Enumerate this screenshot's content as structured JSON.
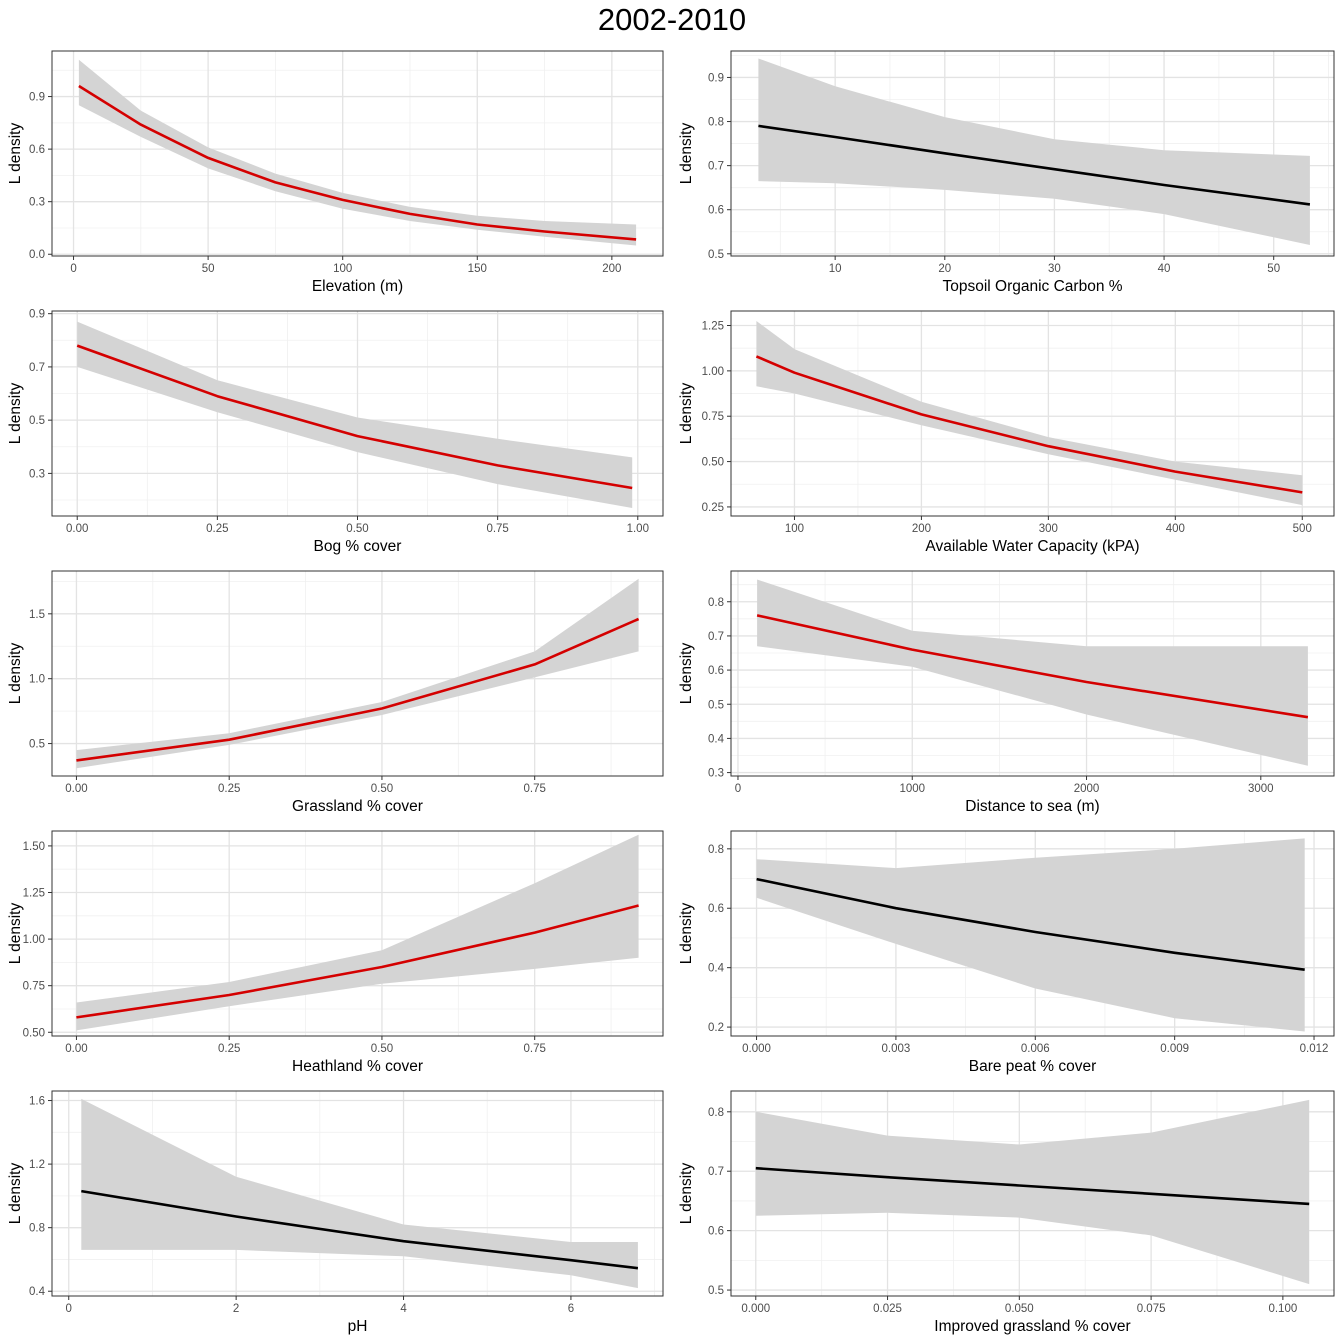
{
  "title": "2002-2010",
  "colors": {
    "significant": "#d40000",
    "nonsignificant": "#000000",
    "ribbon": "#d4d4d4"
  },
  "chart_data": [
    {
      "type": "line",
      "xlabel": "Elevation (m)",
      "ylabel": "L density",
      "color": "red",
      "xlim": [
        -8,
        219
      ],
      "ylim": [
        -0.01,
        1.16
      ],
      "xticks": [
        0,
        50,
        100,
        150,
        200
      ],
      "xtick_labels": [
        "0",
        "50",
        "100",
        "150",
        "200"
      ],
      "yticks": [
        0,
        0.3,
        0.6,
        0.9
      ],
      "ytick_labels": [
        "0.0",
        "0.3",
        "0.6",
        "0.9"
      ],
      "x": [
        2,
        25,
        50,
        75,
        100,
        125,
        150,
        175,
        209
      ],
      "y": [
        0.96,
        0.74,
        0.55,
        0.41,
        0.31,
        0.23,
        0.17,
        0.13,
        0.085
      ],
      "lower": [
        0.85,
        0.67,
        0.49,
        0.36,
        0.26,
        0.19,
        0.14,
        0.1,
        0.05
      ],
      "upper": [
        1.11,
        0.82,
        0.61,
        0.46,
        0.35,
        0.27,
        0.22,
        0.19,
        0.17
      ]
    },
    {
      "type": "line",
      "xlabel": "Topsoil Organic Carbon %",
      "ylabel": "L density",
      "color": "black",
      "xlim": [
        0.5,
        55.5
      ],
      "ylim": [
        0.495,
        0.96
      ],
      "xticks": [
        10,
        20,
        30,
        40,
        50
      ],
      "xtick_labels": [
        "10",
        "20",
        "30",
        "40",
        "50"
      ],
      "yticks": [
        0.5,
        0.6,
        0.7,
        0.8,
        0.9
      ],
      "ytick_labels": [
        "0.5",
        "0.6",
        "0.7",
        "0.8",
        "0.9"
      ],
      "x": [
        3,
        10,
        20,
        30,
        40,
        53.3
      ],
      "y": [
        0.79,
        0.765,
        0.728,
        0.692,
        0.656,
        0.612
      ],
      "lower": [
        0.665,
        0.66,
        0.645,
        0.625,
        0.59,
        0.52
      ],
      "upper": [
        0.943,
        0.88,
        0.81,
        0.76,
        0.735,
        0.722
      ]
    },
    {
      "type": "line",
      "xlabel": "Bog % cover",
      "ylabel": "L density",
      "color": "red",
      "xlim": [
        -0.045,
        1.045
      ],
      "ylim": [
        0.14,
        0.91
      ],
      "xticks": [
        0,
        0.25,
        0.5,
        0.75,
        1.0
      ],
      "xtick_labels": [
        "0.00",
        "0.25",
        "0.50",
        "0.75",
        "1.00"
      ],
      "yticks": [
        0.3,
        0.5,
        0.7,
        0.9
      ],
      "ytick_labels": [
        "0.3",
        "0.5",
        "0.7",
        "0.9"
      ],
      "x": [
        0,
        0.25,
        0.5,
        0.75,
        0.99
      ],
      "y": [
        0.78,
        0.59,
        0.44,
        0.33,
        0.245
      ],
      "lower": [
        0.7,
        0.53,
        0.38,
        0.26,
        0.17
      ],
      "upper": [
        0.87,
        0.65,
        0.51,
        0.43,
        0.36
      ]
    },
    {
      "type": "line",
      "xlabel": "Available Water Capacity (kPA)",
      "ylabel": "L density",
      "color": "red",
      "xlim": [
        50,
        525
      ],
      "ylim": [
        0.2,
        1.33
      ],
      "xticks": [
        100,
        200,
        300,
        400,
        500
      ],
      "xtick_labels": [
        "100",
        "200",
        "300",
        "400",
        "500"
      ],
      "yticks": [
        0.25,
        0.5,
        0.75,
        1.0,
        1.25
      ],
      "ytick_labels": [
        "0.25",
        "0.50",
        "0.75",
        "1.00",
        "1.25"
      ],
      "x": [
        70,
        100,
        200,
        300,
        400,
        500
      ],
      "y": [
        1.08,
        0.99,
        0.76,
        0.585,
        0.445,
        0.33
      ],
      "lower": [
        0.915,
        0.875,
        0.7,
        0.54,
        0.4,
        0.26
      ],
      "upper": [
        1.275,
        1.12,
        0.83,
        0.635,
        0.5,
        0.425
      ]
    },
    {
      "type": "line",
      "xlabel": "Grassland % cover",
      "ylabel": "L density",
      "color": "red",
      "xlim": [
        -0.04,
        0.96
      ],
      "ylim": [
        0.25,
        1.83
      ],
      "xticks": [
        0,
        0.25,
        0.5,
        0.75
      ],
      "xtick_labels": [
        "0.00",
        "0.25",
        "0.50",
        "0.75"
      ],
      "yticks": [
        0.5,
        1.0,
        1.5
      ],
      "ytick_labels": [
        "0.5",
        "1.0",
        "1.5"
      ],
      "x": [
        0,
        0.25,
        0.5,
        0.75,
        0.92
      ],
      "y": [
        0.37,
        0.53,
        0.77,
        1.11,
        1.46
      ],
      "lower": [
        0.31,
        0.49,
        0.72,
        1.01,
        1.21
      ],
      "upper": [
        0.45,
        0.58,
        0.82,
        1.21,
        1.77
      ]
    },
    {
      "type": "line",
      "xlabel": "Distance to sea (m)",
      "ylabel": "L density",
      "color": "red",
      "xlim": [
        -40,
        3420
      ],
      "ylim": [
        0.29,
        0.89
      ],
      "xticks": [
        0,
        1000,
        2000,
        3000
      ],
      "xtick_labels": [
        "0",
        "1000",
        "2000",
        "3000"
      ],
      "yticks": [
        0.3,
        0.4,
        0.5,
        0.6,
        0.7,
        0.8
      ],
      "ytick_labels": [
        "0.3",
        "0.4",
        "0.5",
        "0.6",
        "0.7",
        "0.8"
      ],
      "x": [
        110,
        1000,
        2000,
        3270
      ],
      "y": [
        0.76,
        0.66,
        0.565,
        0.462
      ],
      "lower": [
        0.67,
        0.61,
        0.47,
        0.32
      ],
      "upper": [
        0.865,
        0.715,
        0.67,
        0.67
      ]
    },
    {
      "type": "line",
      "xlabel": "Heathland % cover",
      "ylabel": "L density",
      "color": "red",
      "xlim": [
        -0.04,
        0.96
      ],
      "ylim": [
        0.48,
        1.58
      ],
      "xticks": [
        0,
        0.25,
        0.5,
        0.75
      ],
      "xtick_labels": [
        "0.00",
        "0.25",
        "0.50",
        "0.75"
      ],
      "yticks": [
        0.5,
        0.75,
        1.0,
        1.25,
        1.5
      ],
      "ytick_labels": [
        "0.50",
        "0.75",
        "1.00",
        "1.25",
        "1.50"
      ],
      "x": [
        0,
        0.25,
        0.5,
        0.75,
        0.92
      ],
      "y": [
        0.58,
        0.7,
        0.85,
        1.035,
        1.18
      ],
      "lower": [
        0.51,
        0.64,
        0.76,
        0.84,
        0.9
      ],
      "upper": [
        0.66,
        0.77,
        0.94,
        1.3,
        1.56
      ]
    },
    {
      "type": "line",
      "xlabel": "Bare peat % cover",
      "ylabel": "L density",
      "color": "black",
      "xlim": [
        -0.00055,
        0.01243
      ],
      "ylim": [
        0.17,
        0.86
      ],
      "xticks": [
        0,
        0.003,
        0.006,
        0.009,
        0.012
      ],
      "xtick_labels": [
        "0.000",
        "0.003",
        "0.006",
        "0.009",
        "0.012"
      ],
      "yticks": [
        0.2,
        0.4,
        0.6,
        0.8
      ],
      "ytick_labels": [
        "0.2",
        "0.4",
        "0.6",
        "0.8"
      ],
      "x": [
        0,
        0.003,
        0.006,
        0.009,
        0.0118
      ],
      "y": [
        0.698,
        0.6,
        0.52,
        0.45,
        0.393
      ],
      "lower": [
        0.635,
        0.48,
        0.33,
        0.23,
        0.185
      ],
      "upper": [
        0.765,
        0.735,
        0.77,
        0.8,
        0.835
      ]
    },
    {
      "type": "line",
      "xlabel": "pH",
      "ylabel": "L density",
      "color": "black",
      "xlim": [
        -0.2,
        7.1
      ],
      "ylim": [
        0.37,
        1.66
      ],
      "xticks": [
        0,
        2,
        4,
        6
      ],
      "xtick_labels": [
        "0",
        "2",
        "4",
        "6"
      ],
      "yticks": [
        0.4,
        0.8,
        1.2,
        1.6
      ],
      "ytick_labels": [
        "0.4",
        "0.8",
        "1.2",
        "1.6"
      ],
      "x": [
        0.15,
        2,
        4,
        6,
        6.8
      ],
      "y": [
        1.03,
        0.87,
        0.715,
        0.595,
        0.545
      ],
      "lower": [
        0.66,
        0.66,
        0.62,
        0.5,
        0.42
      ],
      "upper": [
        1.61,
        1.12,
        0.82,
        0.71,
        0.71
      ]
    },
    {
      "type": "line",
      "xlabel": "Improved grassland % cover",
      "ylabel": "L density",
      "color": "black",
      "xlim": [
        -0.0047,
        0.1097
      ],
      "ylim": [
        0.49,
        0.835
      ],
      "xticks": [
        0,
        0.025,
        0.05,
        0.075,
        0.1
      ],
      "xtick_labels": [
        "0.000",
        "0.025",
        "0.050",
        "0.075",
        "0.100"
      ],
      "yticks": [
        0.5,
        0.6,
        0.7,
        0.8
      ],
      "ytick_labels": [
        "0.5",
        "0.6",
        "0.7",
        "0.8"
      ],
      "x": [
        0,
        0.025,
        0.05,
        0.075,
        0.105
      ],
      "y": [
        0.705,
        0.69,
        0.676,
        0.662,
        0.645
      ],
      "lower": [
        0.625,
        0.63,
        0.622,
        0.592,
        0.51
      ],
      "upper": [
        0.8,
        0.76,
        0.745,
        0.765,
        0.82
      ]
    }
  ]
}
